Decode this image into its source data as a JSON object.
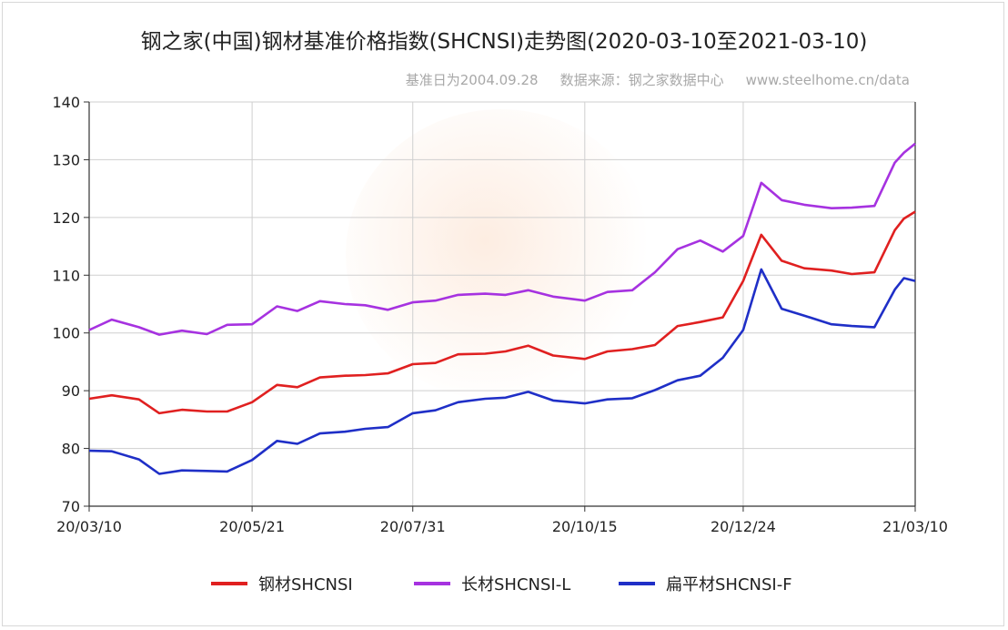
{
  "chart_data": {
    "type": "line",
    "title": "钢之家(中国)钢材基准价格指数(SHCNSI)走势图(2020-03-10至2021-03-10)",
    "subtitle_base": "基准日为2004.09.28",
    "subtitle_source": "数据来源：钢之家数据中心",
    "subtitle_url": "www.steelhome.cn/data",
    "ylim": [
      70,
      140
    ],
    "yticks": [
      70,
      80,
      90,
      100,
      110,
      120,
      130,
      140
    ],
    "xlabels": [
      "20/03/10",
      "20/05/21",
      "20/07/31",
      "20/10/15",
      "20/12/24",
      "21/03/10"
    ],
    "x": [
      "2020-03-10",
      "2020-03-20",
      "2020-04-01",
      "2020-04-10",
      "2020-04-20",
      "2020-05-01",
      "2020-05-10",
      "2020-05-21",
      "2020-06-01",
      "2020-06-10",
      "2020-06-20",
      "2020-07-01",
      "2020-07-10",
      "2020-07-20",
      "2020-07-31",
      "2020-08-10",
      "2020-08-20",
      "2020-09-01",
      "2020-09-10",
      "2020-09-20",
      "2020-10-01",
      "2020-10-15",
      "2020-10-25",
      "2020-11-05",
      "2020-11-15",
      "2020-11-25",
      "2020-12-05",
      "2020-12-15",
      "2020-12-24",
      "2021-01-01",
      "2021-01-10",
      "2021-01-20",
      "2021-02-01",
      "2021-02-10",
      "2021-02-20",
      "2021-03-01",
      "2021-03-05",
      "2021-03-10"
    ],
    "series": [
      {
        "name": "钢材SHCNSI",
        "color": "#e02020",
        "values": [
          88.6,
          89.2,
          88.5,
          86.1,
          86.7,
          86.4,
          86.4,
          88.0,
          91.0,
          90.6,
          92.3,
          92.6,
          92.7,
          93.0,
          94.6,
          94.8,
          96.3,
          96.4,
          96.8,
          97.8,
          96.1,
          95.5,
          96.8,
          97.2,
          97.9,
          101.2,
          101.9,
          102.7,
          109.0,
          117.0,
          112.5,
          111.2,
          110.8,
          110.2,
          110.5,
          117.8,
          119.8,
          121.0
        ]
      },
      {
        "name": "长材SHCNSI-L",
        "color": "#a632e0",
        "values": [
          100.5,
          102.3,
          101.0,
          99.7,
          100.4,
          99.8,
          101.4,
          101.5,
          104.6,
          103.8,
          105.5,
          105.0,
          104.8,
          104.0,
          105.3,
          105.6,
          106.6,
          106.8,
          106.6,
          107.4,
          106.3,
          105.6,
          107.1,
          107.4,
          110.5,
          114.5,
          116.0,
          114.1,
          116.8,
          126.0,
          123.0,
          122.2,
          121.6,
          121.7,
          122.0,
          129.5,
          131.2,
          132.8
        ]
      },
      {
        "name": "扁平材SHCNSI-F",
        "color": "#1f2fc7",
        "values": [
          79.6,
          79.5,
          78.1,
          75.6,
          76.2,
          76.1,
          76.0,
          78.0,
          81.3,
          80.8,
          82.6,
          82.9,
          83.4,
          83.7,
          86.1,
          86.6,
          88.0,
          88.6,
          88.8,
          89.8,
          88.3,
          87.8,
          88.5,
          88.7,
          90.1,
          91.8,
          92.6,
          95.7,
          100.5,
          111.0,
          104.2,
          103.0,
          101.5,
          101.2,
          101.0,
          107.5,
          109.5,
          109.0
        ]
      }
    ],
    "grid": true,
    "legend_position": "bottom"
  }
}
